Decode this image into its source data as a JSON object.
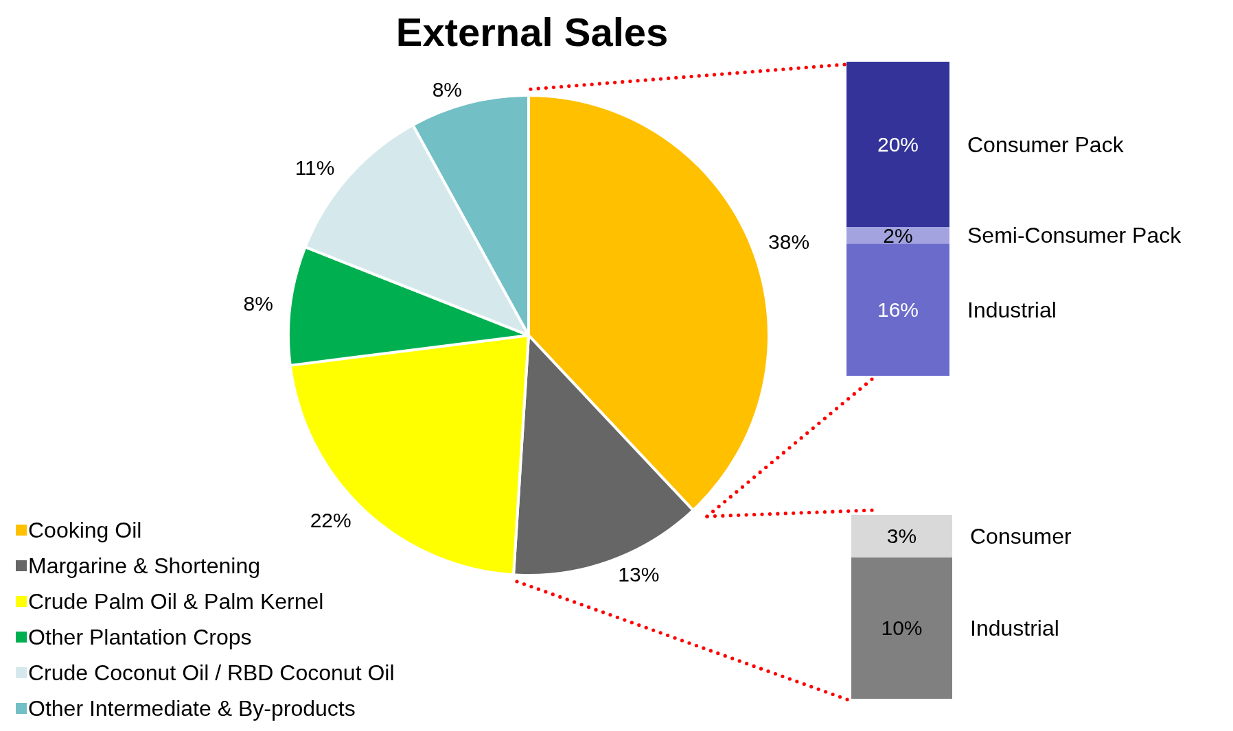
{
  "chart_data": [
    {
      "type": "pie",
      "title": "External Sales",
      "categories": [
        "Cooking Oil",
        "Margarine & Shortening",
        "Crude Palm Oil & Palm Kernel",
        "Other Plantation Crops",
        "Crude Coconut Oil / RBD Coconut Oil",
        "Other Intermediate & By-products"
      ],
      "values": [
        38,
        13,
        22,
        8,
        11,
        8
      ],
      "value_labels": [
        "38%",
        "13%",
        "22%",
        "8%",
        "11%",
        "8%"
      ],
      "colors": [
        "#ffc000",
        "#666666",
        "#ffff00",
        "#00b050",
        "#d5e9ec",
        "#72bfc5"
      ],
      "legend": "bottom left"
    },
    {
      "type": "bar",
      "stacked": true,
      "categories": [
        null
      ],
      "series": [
        {
          "name": "Industrial",
          "color": "#6b6bcc",
          "values": [
            16
          ],
          "value_labels": [
            "16%"
          ]
        },
        {
          "name": "Semi-Consumer Pack",
          "color": "#a3a3e0",
          "values": [
            2
          ],
          "value_labels": [
            "2%"
          ]
        },
        {
          "name": "Consumer Pack",
          "color": "#333399",
          "values": [
            20
          ],
          "value_labels": [
            "20%"
          ]
        }
      ]
    },
    {
      "type": "bar",
      "stacked": true,
      "categories": [
        null
      ],
      "series": [
        {
          "name": "Industrial",
          "color": "#808080",
          "values": [
            10
          ],
          "value_labels": [
            "10%"
          ]
        },
        {
          "name": "Consumer",
          "color": "#d9d9d9",
          "values": [
            3
          ],
          "value_labels": [
            "3%"
          ]
        }
      ]
    }
  ]
}
